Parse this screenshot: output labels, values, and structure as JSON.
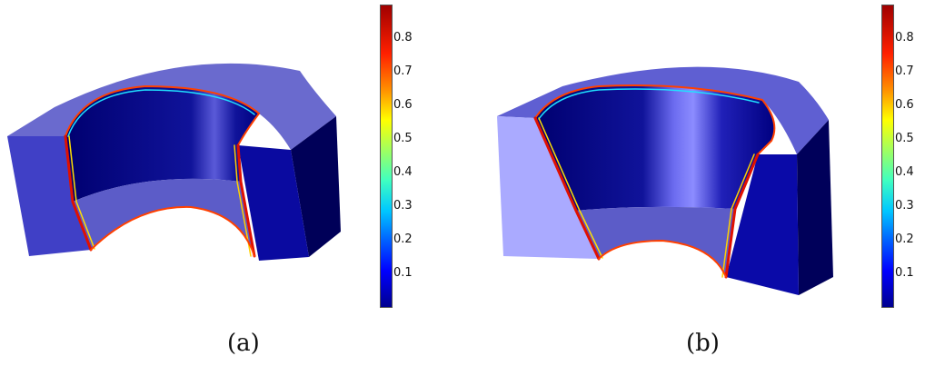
{
  "panels": [
    {
      "caption": "(a)",
      "colorbar": {
        "ticks": [
          "0.8",
          "0.7",
          "0.6",
          "0.5",
          "0.4",
          "0.3",
          "0.2",
          "0.1"
        ]
      }
    },
    {
      "caption": "(b)",
      "colorbar": {
        "ticks": [
          "0.8",
          "0.7",
          "0.6",
          "0.5",
          "0.4",
          "0.3",
          "0.2",
          "0.1"
        ]
      }
    }
  ]
}
